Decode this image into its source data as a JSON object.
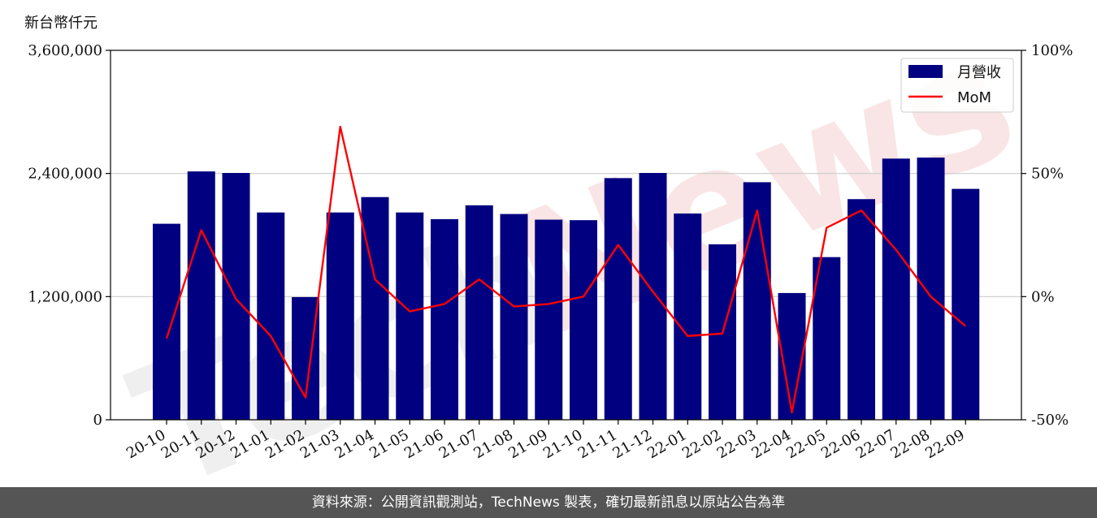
{
  "unit_label": "新台幣仟元",
  "footer_text": "資料來源：公開資訊觀測站，TechNews 製表，確切最新訊息以原站公告為準",
  "watermark": {
    "part1": "Tech",
    "part2": "News"
  },
  "colors": {
    "bar": "#000080",
    "line": "#ff0000",
    "grid": "#cccccc",
    "footer_bg": "#555555"
  },
  "chart_data": {
    "type": "bar",
    "categories": [
      "20-10",
      "20-11",
      "20-12",
      "21-01",
      "21-02",
      "21-03",
      "21-04",
      "21-05",
      "21-06",
      "21-07",
      "21-08",
      "21-09",
      "21-10",
      "21-11",
      "21-12",
      "22-01",
      "22-02",
      "22-03",
      "22-04",
      "22-05",
      "22-06",
      "22-07",
      "22-08",
      "22-09"
    ],
    "series": [
      {
        "name": "月營收",
        "type": "bar",
        "axis": "left",
        "values": [
          1910000,
          2420000,
          2405000,
          2020000,
          1195000,
          2020000,
          2170000,
          2020000,
          1955000,
          2090000,
          2005000,
          1950000,
          1945000,
          2355000,
          2405000,
          2010000,
          1710000,
          2315000,
          1235000,
          1585000,
          2150000,
          2545000,
          2555000,
          2250000
        ]
      },
      {
        "name": "MoM",
        "type": "line",
        "axis": "right",
        "values": [
          -17,
          27,
          -1,
          -16,
          -41,
          69,
          7,
          -6,
          -3,
          7,
          -4,
          -3,
          0,
          21,
          2,
          -16,
          -15,
          35,
          -47,
          28,
          35,
          19,
          0,
          -12
        ]
      }
    ],
    "y_left": {
      "ylim": [
        0,
        3600000
      ],
      "ticks": [
        0,
        1200000,
        2400000,
        3600000
      ],
      "tick_labels": [
        "0",
        "1,200,000",
        "2,400,000",
        "3,600,000"
      ]
    },
    "y_right": {
      "ylim": [
        -50,
        100
      ],
      "ticks": [
        -50,
        0,
        50,
        100
      ],
      "tick_labels": [
        "-50%",
        "0%",
        "50%",
        "100%"
      ]
    },
    "grid": true,
    "legend": {
      "position": "top-right"
    }
  }
}
